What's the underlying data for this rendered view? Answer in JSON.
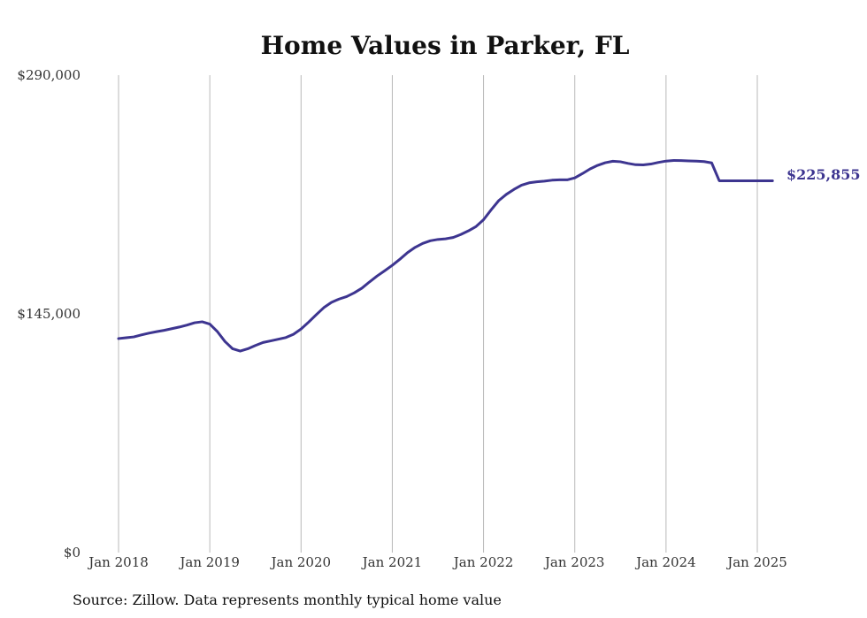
{
  "chart_data": {
    "type": "line",
    "title": "Home Values in Parker, FL",
    "xlabel": "",
    "ylabel": "",
    "ylim": [
      0,
      290000
    ],
    "y_ticks": [
      {
        "value": 0,
        "label": "$0"
      },
      {
        "value": 145000,
        "label": "$145,000"
      },
      {
        "value": 290000,
        "label": "$290,000"
      }
    ],
    "x_ticks": [
      {
        "value": "2018-01",
        "label": "Jan 2018"
      },
      {
        "value": "2019-01",
        "label": "Jan 2019"
      },
      {
        "value": "2020-01",
        "label": "Jan 2020"
      },
      {
        "value": "2021-01",
        "label": "Jan 2021"
      },
      {
        "value": "2022-01",
        "label": "Jan 2022"
      },
      {
        "value": "2023-01",
        "label": "Jan 2023"
      },
      {
        "value": "2024-01",
        "label": "Jan 2024"
      },
      {
        "value": "2025-01",
        "label": "Jan 2025"
      }
    ],
    "grid": "vertical",
    "line_color": "#3d3590",
    "end_label": "$225,855",
    "x": [
      "2018-01",
      "2018-02",
      "2018-03",
      "2018-04",
      "2018-05",
      "2018-06",
      "2018-07",
      "2018-08",
      "2018-09",
      "2018-10",
      "2018-11",
      "2018-12",
      "2019-01",
      "2019-02",
      "2019-03",
      "2019-04",
      "2019-05",
      "2019-06",
      "2019-07",
      "2019-08",
      "2019-09",
      "2019-10",
      "2019-11",
      "2019-12",
      "2020-01",
      "2020-02",
      "2020-03",
      "2020-04",
      "2020-05",
      "2020-06",
      "2020-07",
      "2020-08",
      "2020-09",
      "2020-10",
      "2020-11",
      "2020-12",
      "2021-01",
      "2021-02",
      "2021-03",
      "2021-04",
      "2021-05",
      "2021-06",
      "2021-07",
      "2021-08",
      "2021-09",
      "2021-10",
      "2021-11",
      "2021-12",
      "2022-01",
      "2022-02",
      "2022-03",
      "2022-04",
      "2022-05",
      "2022-06",
      "2022-07",
      "2022-08",
      "2022-09",
      "2022-10",
      "2022-11",
      "2022-12",
      "2023-01",
      "2023-02",
      "2023-03",
      "2023-04",
      "2023-05",
      "2023-06",
      "2023-07",
      "2023-08",
      "2023-09",
      "2023-10",
      "2023-11",
      "2023-12",
      "2024-01",
      "2024-02",
      "2024-03",
      "2024-04",
      "2024-05",
      "2024-06",
      "2024-07",
      "2024-08",
      "2024-09",
      "2024-10",
      "2024-11",
      "2024-12",
      "2025-01",
      "2025-02",
      "2025-03"
    ],
    "series": [
      {
        "values": [
          130000,
          130500,
          131000,
          132200,
          133300,
          134200,
          135000,
          136000,
          137000,
          138200,
          139600,
          140200,
          138800,
          134200,
          128200,
          123800,
          122400,
          123800,
          125800,
          127600,
          128600,
          129600,
          130600,
          132600,
          135800,
          140000,
          144500,
          148800,
          152000,
          154000,
          155500,
          157800,
          160600,
          164400,
          168000,
          171200,
          174500,
          178200,
          182200,
          185400,
          187800,
          189400,
          190200,
          190600,
          191400,
          193200,
          195400,
          198000,
          202200,
          208200,
          213800,
          217600,
          220600,
          223200,
          224600,
          225200,
          225600,
          226200,
          226400,
          226400,
          227600,
          230200,
          233000,
          235200,
          236800,
          237700,
          237400,
          236400,
          235600,
          235500,
          236000,
          237000,
          237800,
          238200,
          238100,
          237900,
          237800,
          237500,
          236700,
          225855,
          225855,
          225855,
          225855,
          225855,
          225855,
          225855,
          225855
        ]
      }
    ]
  },
  "source_note": "Source: Zillow. Data represents monthly typical home value"
}
